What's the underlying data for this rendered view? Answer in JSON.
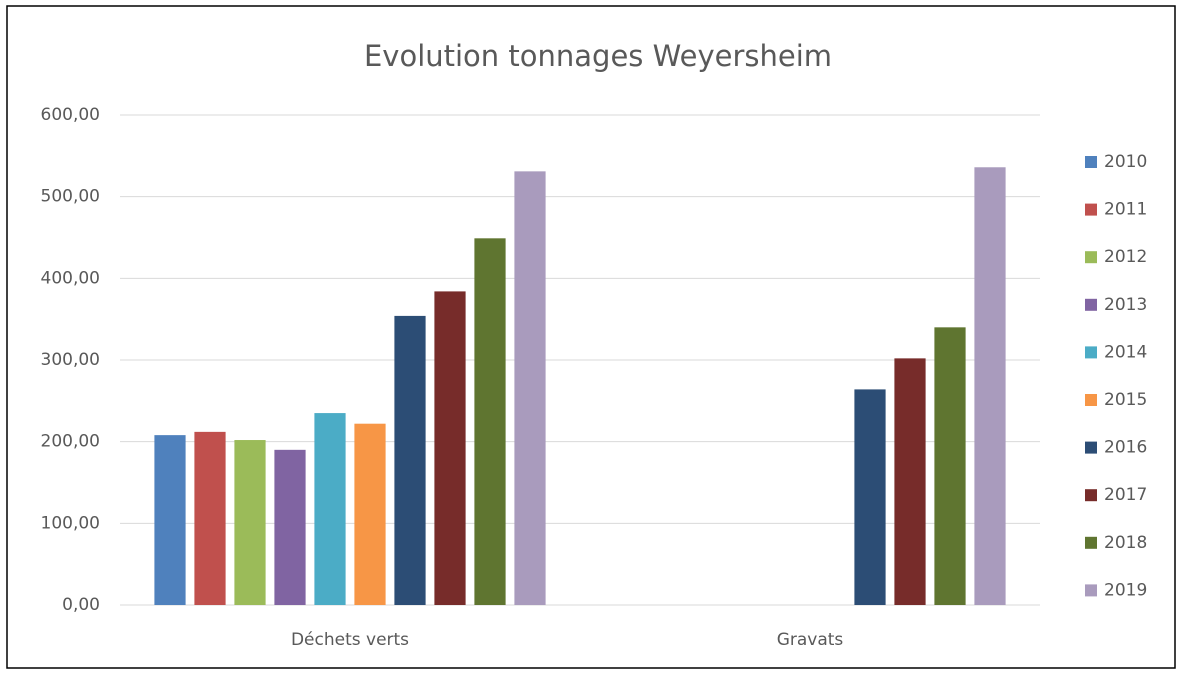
{
  "chart_data": {
    "type": "bar",
    "title": "Evolution tonnages Weyersheim",
    "categories": [
      "Déchets verts",
      "Gravats"
    ],
    "series": [
      {
        "name": "2010",
        "color": "#4f81bd",
        "values": [
          208,
          null
        ]
      },
      {
        "name": "2011",
        "color": "#c0504d",
        "values": [
          212,
          null
        ]
      },
      {
        "name": "2012",
        "color": "#9bbb59",
        "values": [
          202,
          null
        ]
      },
      {
        "name": "2013",
        "color": "#8064a2",
        "values": [
          190,
          null
        ]
      },
      {
        "name": "2014",
        "color": "#4bacc6",
        "values": [
          235,
          null
        ]
      },
      {
        "name": "2015",
        "color": "#f79646",
        "values": [
          222,
          null
        ]
      },
      {
        "name": "2016",
        "color": "#2c4d75",
        "values": [
          354,
          264
        ]
      },
      {
        "name": "2017",
        "color": "#772c2a",
        "values": [
          384,
          302
        ]
      },
      {
        "name": "2018",
        "color": "#5f7530",
        "values": [
          449,
          340
        ]
      },
      {
        "name": "2019",
        "color": "#a99bbd",
        "values": [
          531,
          536
        ]
      }
    ],
    "ylim": [
      0,
      600
    ],
    "yticks": [
      {
        "value": 0,
        "label": "0,00"
      },
      {
        "value": 100,
        "label": "100,00"
      },
      {
        "value": 200,
        "label": "200,00"
      },
      {
        "value": 300,
        "label": "300,00"
      },
      {
        "value": 400,
        "label": "400,00"
      },
      {
        "value": 500,
        "label": "500,00"
      },
      {
        "value": 600,
        "label": "600,00"
      }
    ],
    "grid": true,
    "legend": "right"
  }
}
